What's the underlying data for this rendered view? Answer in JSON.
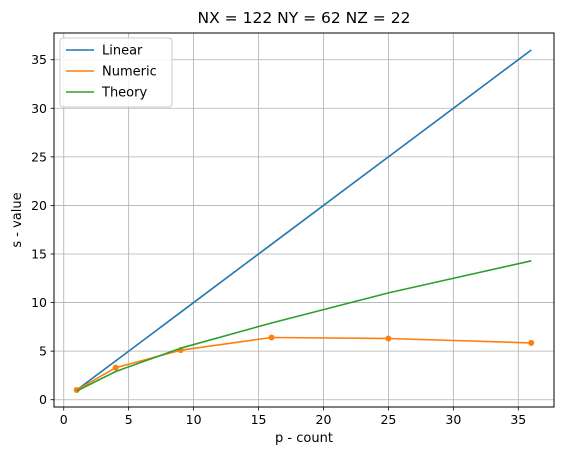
{
  "chart_data": {
    "type": "line",
    "title": "NX = 122 NY = 62 NZ = 22",
    "xlabel": "p - count",
    "ylabel": "s - value",
    "xlim": [
      -0.75,
      37.75
    ],
    "ylim": [
      -0.75,
      37.75
    ],
    "xticks": [
      0,
      5,
      10,
      15,
      20,
      25,
      30,
      35
    ],
    "yticks": [
      0,
      5,
      10,
      15,
      20,
      25,
      30,
      35
    ],
    "grid": true,
    "legend_position": "top-left",
    "series": [
      {
        "name": "Linear",
        "color": "#1f77b4",
        "marker": false,
        "x": [
          1,
          4,
          9,
          16,
          25,
          36
        ],
        "y": [
          1,
          4,
          9,
          16,
          25,
          36
        ]
      },
      {
        "name": "Numeric",
        "color": "#ff7f0e",
        "marker": true,
        "x": [
          1,
          4,
          9,
          16,
          25,
          36
        ],
        "y": [
          1.0,
          3.3,
          5.1,
          6.4,
          6.3,
          5.85
        ]
      },
      {
        "name": "Theory",
        "color": "#2ca02c",
        "marker": false,
        "x": [
          1,
          4,
          9,
          16,
          25,
          36
        ],
        "y": [
          0.9,
          2.9,
          5.3,
          7.9,
          11.0,
          14.3
        ]
      }
    ]
  }
}
